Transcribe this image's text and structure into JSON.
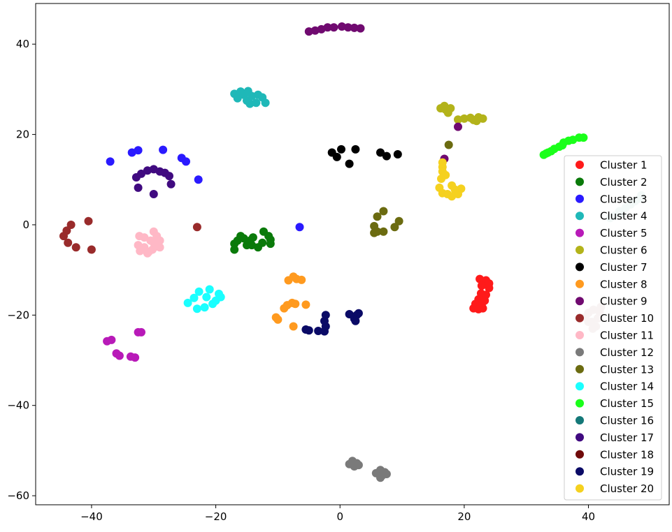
{
  "chart_data": {
    "type": "scatter",
    "title": "",
    "xlabel": "",
    "ylabel": "",
    "xlim": [
      -49,
      53
    ],
    "ylim": [
      -62,
      49
    ],
    "xticks": [
      -40,
      -20,
      0,
      20,
      40
    ],
    "yticks": [
      -60,
      -40,
      -20,
      0,
      20,
      40
    ],
    "xtick_labels": [
      "−40",
      "−20",
      "0",
      "20",
      "40"
    ],
    "ytick_labels": [
      "−60",
      "−40",
      "−20",
      "0",
      "20",
      "40"
    ],
    "grid": false,
    "legend_position": "lower-right",
    "series": [
      {
        "name": "Cluster 1",
        "color": "#ff1a1a",
        "points": [
          [
            22.5,
            -12
          ],
          [
            23.5,
            -12.3
          ],
          [
            24,
            -13
          ],
          [
            22.8,
            -13.5
          ],
          [
            24,
            -14
          ],
          [
            22.7,
            -15.2
          ],
          [
            23.5,
            -15.5
          ],
          [
            22.3,
            -16.5
          ],
          [
            23.3,
            -16.8
          ],
          [
            21.8,
            -17.5
          ],
          [
            22.8,
            -17.8
          ],
          [
            21.5,
            -18.5
          ],
          [
            22.3,
            -18.7
          ],
          [
            23,
            -18.5
          ]
        ]
      },
      {
        "name": "Cluster 2",
        "color": "#0a7a0a",
        "points": [
          [
            -17,
            -5.5
          ],
          [
            -17,
            -4.2
          ],
          [
            -16.5,
            -3.5
          ],
          [
            -16,
            -2.5
          ],
          [
            -15.5,
            -3
          ],
          [
            -15,
            -4.5
          ],
          [
            -14.5,
            -3.5
          ],
          [
            -14,
            -2.8
          ],
          [
            -14.2,
            -4.5
          ],
          [
            -13.2,
            -5
          ],
          [
            -12.5,
            -4
          ],
          [
            -12.3,
            -1.5
          ],
          [
            -11.5,
            -2.5
          ],
          [
            -11.2,
            -3.3
          ],
          [
            -11.2,
            -4.2
          ]
        ]
      },
      {
        "name": "Cluster 3",
        "color": "#2a1aff",
        "points": [
          [
            -37,
            14
          ],
          [
            -33.5,
            16
          ],
          [
            -32.5,
            16.5
          ],
          [
            -28.5,
            16.6
          ],
          [
            -25.5,
            14.8
          ],
          [
            -24.8,
            14
          ],
          [
            -22.8,
            10
          ],
          [
            -6.5,
            -0.5
          ]
        ]
      },
      {
        "name": "Cluster 4",
        "color": "#1fb8b8",
        "points": [
          [
            -17,
            29
          ],
          [
            -16.5,
            28
          ],
          [
            -16,
            29.5
          ],
          [
            -15.5,
            28.8
          ],
          [
            -15,
            27.5
          ],
          [
            -14.8,
            29.6
          ],
          [
            -14.5,
            26.8
          ],
          [
            -14.2,
            28.5
          ],
          [
            -13.5,
            27
          ],
          [
            -13.2,
            28.8
          ],
          [
            -12.5,
            28.2
          ],
          [
            -12,
            27
          ]
        ]
      },
      {
        "name": "Cluster 5",
        "color": "#b81ab8",
        "points": [
          [
            -37.5,
            -25.8
          ],
          [
            -36.8,
            -25.5
          ],
          [
            -36,
            -28.5
          ],
          [
            -35.5,
            -29
          ],
          [
            -32.5,
            -23.8
          ],
          [
            -32,
            -23.8
          ],
          [
            -33.7,
            -29.2
          ],
          [
            -33,
            -29.4
          ]
        ]
      },
      {
        "name": "Cluster 6",
        "color": "#b3b31a",
        "points": [
          [
            16.2,
            25.8
          ],
          [
            16.8,
            26.3
          ],
          [
            17,
            25.5
          ],
          [
            17.4,
            24.8
          ],
          [
            17.8,
            25.8
          ],
          [
            19,
            23.3
          ],
          [
            20,
            23.5
          ],
          [
            21,
            23.7
          ],
          [
            21.5,
            23.2
          ],
          [
            22.3,
            23.8
          ],
          [
            22,
            23
          ],
          [
            23,
            23.5
          ]
        ]
      },
      {
        "name": "Cluster 7",
        "color": "#000000",
        "points": [
          [
            -1.3,
            16
          ],
          [
            -0.5,
            15
          ],
          [
            0.2,
            16.7
          ],
          [
            1.5,
            13.5
          ],
          [
            2.5,
            16.7
          ],
          [
            6.5,
            16
          ],
          [
            7.5,
            15.2
          ],
          [
            9.3,
            15.6
          ]
        ]
      },
      {
        "name": "Cluster 8",
        "color": "#ff9a1f",
        "points": [
          [
            -8.3,
            -12.3
          ],
          [
            -7.5,
            -11.5
          ],
          [
            -7,
            -12
          ],
          [
            -6.2,
            -12.2
          ],
          [
            -9,
            -18.5
          ],
          [
            -8.5,
            -17.8
          ],
          [
            -7.7,
            -17.3
          ],
          [
            -7.2,
            -17.5
          ],
          [
            -5.5,
            -17.7
          ],
          [
            -10.3,
            -20.5
          ],
          [
            -10,
            -21
          ],
          [
            -7.5,
            -22.5
          ]
        ]
      },
      {
        "name": "Cluster 9",
        "color": "#700a70",
        "points": [
          [
            -5,
            42.8
          ],
          [
            -4,
            43
          ],
          [
            -3,
            43.3
          ],
          [
            -2,
            43.7
          ],
          [
            -1,
            43.7
          ],
          [
            0.3,
            43.9
          ],
          [
            1.3,
            43.7
          ],
          [
            2.3,
            43.6
          ],
          [
            3.3,
            43.5
          ],
          [
            19,
            21.7
          ],
          [
            16.8,
            14.6
          ]
        ]
      },
      {
        "name": "Cluster 10",
        "color": "#992b2b",
        "points": [
          [
            -43.3,
            0
          ],
          [
            -44,
            -1.3
          ],
          [
            -44.5,
            -2.5
          ],
          [
            -43.8,
            -4
          ],
          [
            -42.5,
            -5
          ],
          [
            -40.5,
            0.8
          ],
          [
            -40,
            -5.5
          ],
          [
            -23,
            -0.5
          ]
        ]
      },
      {
        "name": "Cluster 11",
        "color": "#ffb8c6",
        "points": [
          [
            -32.3,
            -2.5
          ],
          [
            -31.5,
            -2.8
          ],
          [
            -30.5,
            -3.5
          ],
          [
            -30,
            -1.5
          ],
          [
            -29.5,
            -2.5
          ],
          [
            -29,
            -3.5
          ],
          [
            -32.5,
            -4.5
          ],
          [
            -31.5,
            -5
          ],
          [
            -30.8,
            -6
          ],
          [
            -30.2,
            -5.5
          ],
          [
            -29.5,
            -4.8
          ],
          [
            -29,
            -5
          ],
          [
            -32.2,
            -5.8
          ],
          [
            -31,
            -6.3
          ],
          [
            -30,
            -4
          ]
        ]
      },
      {
        "name": "Cluster 12",
        "color": "#7a7a7a",
        "points": [
          [
            1.5,
            -53
          ],
          [
            2,
            -52.3
          ],
          [
            2.3,
            -53.5
          ],
          [
            2.7,
            -52.8
          ],
          [
            3,
            -53.2
          ],
          [
            5.8,
            -55
          ],
          [
            6.5,
            -54.3
          ],
          [
            6.8,
            -55.5
          ],
          [
            7.2,
            -54.8
          ],
          [
            7.5,
            -55.2
          ],
          [
            6.5,
            -56
          ]
        ]
      },
      {
        "name": "Cluster 13",
        "color": "#6b6b10",
        "points": [
          [
            5.5,
            -0.3
          ],
          [
            5.5,
            -1.8
          ],
          [
            6,
            1.8
          ],
          [
            6,
            -1.5
          ],
          [
            7,
            3
          ],
          [
            7,
            -1.5
          ],
          [
            8.8,
            -0.5
          ],
          [
            9.5,
            0.8
          ],
          [
            17.5,
            17.7
          ]
        ]
      },
      {
        "name": "Cluster 14",
        "color": "#1affff",
        "points": [
          [
            -24.5,
            -17.3
          ],
          [
            -23.5,
            -16.2
          ],
          [
            -23,
            -18.6
          ],
          [
            -22.7,
            -14.8
          ],
          [
            -21.8,
            -18.3
          ],
          [
            -21.5,
            -16
          ],
          [
            -21,
            -14.3
          ],
          [
            -20.5,
            -17.5
          ],
          [
            -20,
            -16.8
          ],
          [
            -19.5,
            -15.3
          ],
          [
            -19.2,
            -16
          ]
        ]
      },
      {
        "name": "Cluster 15",
        "color": "#1aff1a",
        "points": [
          [
            32.8,
            15.5
          ],
          [
            33.5,
            16
          ],
          [
            34.5,
            16.8
          ],
          [
            35.3,
            17.3
          ],
          [
            36,
            18.2
          ],
          [
            36.8,
            18.6
          ],
          [
            37.5,
            18.8
          ],
          [
            38.5,
            19.3
          ],
          [
            39.2,
            19.3
          ],
          [
            33.2,
            15.8
          ],
          [
            34,
            16.3
          ],
          [
            35.8,
            17.6
          ]
        ]
      },
      {
        "name": "Cluster 16",
        "color": "#147878",
        "points": []
      },
      {
        "name": "Cluster 17",
        "color": "#400a80",
        "points": [
          [
            -32.8,
            10.5
          ],
          [
            -32,
            11.3
          ],
          [
            -31,
            12
          ],
          [
            -30,
            12.3
          ],
          [
            -29,
            11.8
          ],
          [
            -28.2,
            11.5
          ],
          [
            -27.5,
            10.8
          ],
          [
            -27.2,
            9
          ],
          [
            -32.5,
            8.2
          ],
          [
            -30,
            6.8
          ]
        ]
      },
      {
        "name": "Cluster 18",
        "color": "#700a0a",
        "points": []
      },
      {
        "name": "Cluster 19",
        "color": "#0a0a66",
        "points": [
          [
            -5.5,
            -23.2
          ],
          [
            -5,
            -23.4
          ],
          [
            -3.5,
            -23.5
          ],
          [
            -2.5,
            -23.6
          ],
          [
            -2.3,
            -22.5
          ],
          [
            -2.5,
            -21.3
          ],
          [
            -2.3,
            -20
          ],
          [
            1.5,
            -19.8
          ],
          [
            2.3,
            -20.8
          ],
          [
            2.7,
            -20
          ],
          [
            2.5,
            -21.3
          ],
          [
            3,
            -19.6
          ]
        ]
      },
      {
        "name": "Cluster 20",
        "color": "#f5d11f",
        "points": [
          [
            16.5,
            13.8
          ],
          [
            16.5,
            12.8
          ],
          [
            16.5,
            11.8
          ],
          [
            17,
            11
          ],
          [
            16.3,
            10.2
          ],
          [
            16,
            8.2
          ],
          [
            16.5,
            7
          ],
          [
            17.3,
            6.8
          ],
          [
            18,
            8.7
          ],
          [
            18.5,
            7.8
          ],
          [
            19,
            6.8
          ],
          [
            19.5,
            8
          ],
          [
            18,
            6.3
          ]
        ]
      }
    ],
    "unlegended_points": [
      {
        "color": "#d9c4c4",
        "points": [
          [
            39.5,
            -20.5
          ],
          [
            40,
            -19.5
          ],
          [
            40.5,
            -21.5
          ],
          [
            40.8,
            -18.8
          ],
          [
            41.2,
            -22.5
          ],
          [
            41.5,
            -20.7
          ],
          [
            41.8,
            -19.3
          ],
          [
            42,
            -18.2
          ],
          [
            40.7,
            -23
          ],
          [
            40,
            -21.5
          ]
        ]
      },
      {
        "color": "#c4dedc",
        "points": [
          [
            43.5,
            1.5
          ],
          [
            44.2,
            2
          ],
          [
            45,
            3
          ],
          [
            46,
            3.8
          ],
          [
            46.8,
            4.5
          ],
          [
            47.5,
            5.2
          ],
          [
            48.2,
            5.8
          ],
          [
            48.5,
            6.5
          ],
          [
            45.5,
            2.5
          ],
          [
            47,
            5
          ]
        ]
      }
    ]
  }
}
